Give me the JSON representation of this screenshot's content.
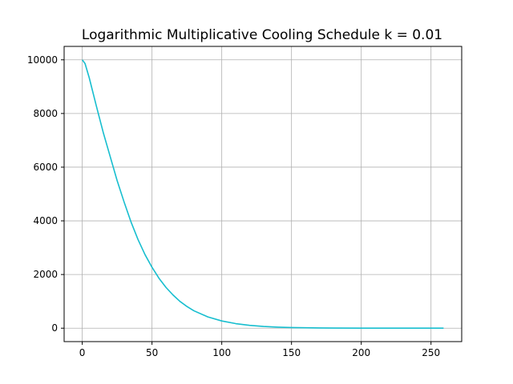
{
  "chart_data": {
    "type": "line",
    "title": "Logarithmic Multiplicative Cooling Schedule  k = 0.01",
    "xlabel": "",
    "ylabel": "",
    "xlim": [
      -13,
      272
    ],
    "ylim": [
      -500,
      10500
    ],
    "xticks": [
      0,
      50,
      100,
      150,
      200,
      250
    ],
    "yticks": [
      0,
      2000,
      4000,
      6000,
      8000,
      10000
    ],
    "grid": true,
    "series": [
      {
        "color": "#17becf",
        "x": [
          0,
          2,
          5,
          10,
          15,
          20,
          25,
          30,
          35,
          40,
          45,
          50,
          55,
          60,
          65,
          70,
          75,
          80,
          90,
          100,
          110,
          120,
          130,
          140,
          150,
          160,
          170,
          180,
          200,
          220,
          240,
          259
        ],
        "y": [
          10000,
          9860,
          9330,
          8300,
          7300,
          6400,
          5500,
          4700,
          3950,
          3300,
          2740,
          2270,
          1860,
          1520,
          1240,
          1000,
          810,
          650,
          420,
          270,
          170,
          105,
          65,
          40,
          25,
          15,
          9,
          5,
          2,
          1,
          0,
          0
        ]
      }
    ]
  }
}
